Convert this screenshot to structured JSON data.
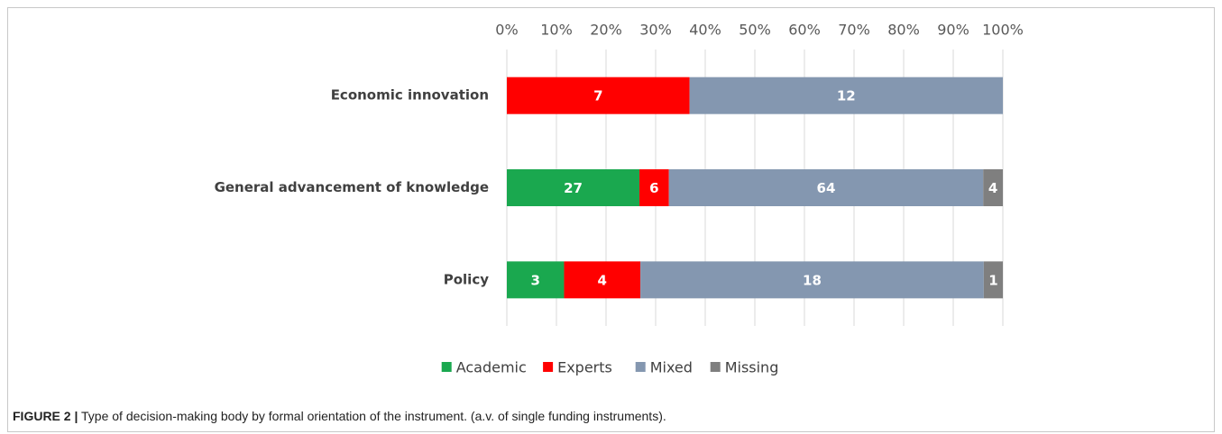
{
  "chart_data": {
    "type": "bar",
    "orientation": "horizontal",
    "stacked": "percent",
    "categories": [
      "Economic innovation",
      "General advancement of knowledge",
      "Policy"
    ],
    "series": [
      {
        "name": "Academic",
        "color": "#1aa84f",
        "values": [
          null,
          27,
          3
        ]
      },
      {
        "name": "Experts",
        "color": "#ff0000",
        "values": [
          7,
          6,
          4
        ]
      },
      {
        "name": "Mixed",
        "color": "#8497b0",
        "values": [
          12,
          64,
          18
        ]
      },
      {
        "name": "Missing",
        "color": "#7f7f7f",
        "values": [
          null,
          4,
          1
        ]
      }
    ],
    "xlim": [
      0,
      100
    ],
    "xticks": [
      {
        "value": 0,
        "label": "0%"
      },
      {
        "value": 10,
        "label": "10%"
      },
      {
        "value": 20,
        "label": "20%"
      },
      {
        "value": 30,
        "label": "30%"
      },
      {
        "value": 40,
        "label": "40%"
      },
      {
        "value": 50,
        "label": "50%"
      },
      {
        "value": 60,
        "label": "60%"
      },
      {
        "value": 70,
        "label": "70%"
      },
      {
        "value": 80,
        "label": "80%"
      },
      {
        "value": 90,
        "label": "90%"
      },
      {
        "value": 100,
        "label": "100%"
      }
    ],
    "grid": true,
    "legend": "bottom",
    "caption": {
      "label": "FIGURE 2 |",
      "text": "Type of decision-making body by formal orientation of the instrument. (a.v. of single funding instruments)."
    }
  }
}
